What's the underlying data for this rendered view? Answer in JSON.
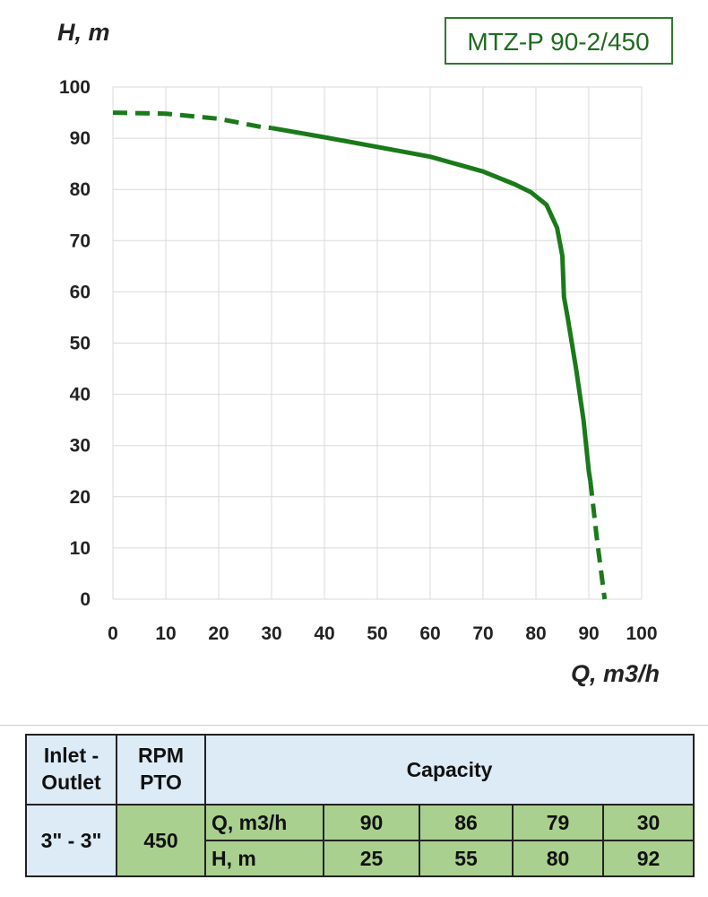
{
  "chart_data": {
    "type": "line",
    "title": "MTZ-P 90-2/450",
    "xlabel": "Q, m3/h",
    "ylabel": "H, m",
    "xlim": [
      0,
      100
    ],
    "ylim": [
      0,
      100
    ],
    "xticks": [
      0,
      10,
      20,
      30,
      40,
      50,
      60,
      70,
      80,
      90,
      100
    ],
    "yticks": [
      0,
      10,
      20,
      30,
      40,
      50,
      60,
      70,
      80,
      90,
      100
    ],
    "grid": true,
    "series": [
      {
        "color": "#1a7a1a",
        "points": [
          {
            "x": 0,
            "y": 95,
            "style": "dashed"
          },
          {
            "x": 10,
            "y": 94.8,
            "style": "dashed"
          },
          {
            "x": 20,
            "y": 93.8,
            "style": "dashed"
          },
          {
            "x": 28,
            "y": 92.2,
            "style": "dashed"
          },
          {
            "x": 30,
            "y": 92,
            "style": "solid"
          },
          {
            "x": 40,
            "y": 90.2,
            "style": "solid"
          },
          {
            "x": 50,
            "y": 88.3,
            "style": "solid"
          },
          {
            "x": 60,
            "y": 86.4,
            "style": "solid"
          },
          {
            "x": 70,
            "y": 83.5,
            "style": "solid"
          },
          {
            "x": 76,
            "y": 81,
            "style": "solid"
          },
          {
            "x": 79,
            "y": 79.5,
            "style": "solid"
          },
          {
            "x": 82,
            "y": 77,
            "style": "solid"
          },
          {
            "x": 84,
            "y": 72.5,
            "style": "solid"
          },
          {
            "x": 85,
            "y": 67,
            "style": "solid"
          },
          {
            "x": 85.3,
            "y": 59,
            "style": "solid"
          },
          {
            "x": 86,
            "y": 55,
            "style": "solid"
          },
          {
            "x": 87.6,
            "y": 45,
            "style": "solid"
          },
          {
            "x": 89,
            "y": 35,
            "style": "solid"
          },
          {
            "x": 90,
            "y": 25,
            "style": "solid"
          },
          {
            "x": 90.3,
            "y": 23,
            "style": "dashed"
          },
          {
            "x": 91.5,
            "y": 12,
            "style": "dashed"
          },
          {
            "x": 93,
            "y": 0,
            "style": "dashed"
          }
        ]
      }
    ]
  },
  "table": {
    "inlet_outlet_header": "Inlet - Outlet",
    "rpm_header": "RPM PTO",
    "capacity_header": "Capacity",
    "inlet_outlet_value": "3\" - 3\"",
    "rpm_value": "450",
    "q_label": "Q, m3/h",
    "h_label": "H, m",
    "q_values": [
      "90",
      "86",
      "79",
      "30"
    ],
    "h_values": [
      "25",
      "55",
      "80",
      "92"
    ]
  }
}
